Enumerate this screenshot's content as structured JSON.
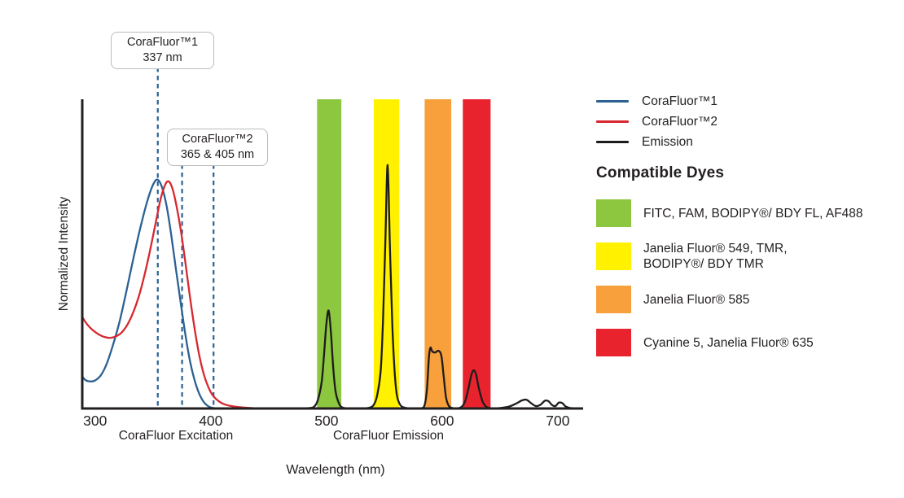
{
  "figure": {
    "y_axis_label": "Normalized Intensity",
    "x_axis_label": "Wavelength (nm)",
    "excitation_label": "CoraFluor Excitation",
    "emission_label": "CoraFluor Emission"
  },
  "annotations": {
    "box1": {
      "title": "CoraFluor™1",
      "value": "337 nm"
    },
    "box2": {
      "title": "CoraFluor™2",
      "value": "365 & 405 nm"
    }
  },
  "legend": {
    "items": [
      {
        "key": "corafluor1",
        "label": "CoraFluor™1",
        "color": "#2B6193"
      },
      {
        "key": "corafluor2",
        "label": "CoraFluor™2",
        "color": "#D7282F"
      },
      {
        "key": "emission",
        "label": "Emission",
        "color": "#1C1C1C"
      }
    ]
  },
  "compatible_dyes": {
    "heading": "Compatible Dyes",
    "items": [
      {
        "color": "#8DC63F",
        "label": "FITC, FAM, BODIPY®/ BDY FL, AF488"
      },
      {
        "color": "#FFF100",
        "label": "Janelia Fluor® 549, TMR,\nBODIPY®/ BDY TMR"
      },
      {
        "color": "#F7A03C",
        "label": "Janelia Fluor® 585"
      },
      {
        "color": "#E8232E",
        "label": "Cyanine 5, Janelia Fluor® 635"
      }
    ]
  },
  "chart_data": {
    "type": "line",
    "title": "CoraFluor excitation and emission spectra with compatible dye filter bands",
    "xlabel": "Wavelength (nm)",
    "ylabel": "Normalized Intensity",
    "xlim": [
      291,
      724
    ],
    "ylim": [
      0,
      1.27
    ],
    "x_ticks": [
      300,
      400,
      500,
      600,
      700
    ],
    "grid": false,
    "legend_position": "right",
    "marker_color": "#2B6193",
    "axis_color": "#231F20",
    "markers": [
      {
        "x": 356.3,
        "from_box": 1,
        "labeled_peak": "337 nm"
      },
      {
        "x": 377.3,
        "from_box": 2,
        "labeled_peak": "365 nm"
      },
      {
        "x": 404.5,
        "from_box": 2,
        "labeled_peak": "405 nm"
      }
    ],
    "bands": [
      {
        "name": "green",
        "x1": 494,
        "x2": 515,
        "color": "#8DC63F"
      },
      {
        "name": "yellow",
        "x1": 543,
        "x2": 565,
        "color": "#FFF100"
      },
      {
        "name": "orange",
        "x1": 587,
        "x2": 610,
        "color": "#F7A03C"
      },
      {
        "name": "red",
        "x1": 620,
        "x2": 644,
        "color": "#E8232E"
      }
    ],
    "series": [
      {
        "key": "corafluor1-excitation",
        "name": "CoraFluor™1",
        "color": "#2B6193",
        "points": [
          [
            291,
            0.131
          ],
          [
            294,
            0.116
          ],
          [
            298,
            0.111
          ],
          [
            302,
            0.115
          ],
          [
            307,
            0.136
          ],
          [
            312,
            0.182
          ],
          [
            317,
            0.252
          ],
          [
            323,
            0.352
          ],
          [
            329,
            0.478
          ],
          [
            335,
            0.612
          ],
          [
            341,
            0.738
          ],
          [
            347,
            0.848
          ],
          [
            352,
            0.917
          ],
          [
            356,
            0.94
          ],
          [
            360,
            0.908
          ],
          [
            364,
            0.83
          ],
          [
            368,
            0.71
          ],
          [
            372,
            0.572
          ],
          [
            376,
            0.438
          ],
          [
            380,
            0.308
          ],
          [
            384,
            0.198
          ],
          [
            388,
            0.118
          ],
          [
            392,
            0.062
          ],
          [
            396,
            0.027
          ],
          [
            400,
            0.009
          ],
          [
            404,
            0.002
          ],
          [
            410,
            0
          ]
        ]
      },
      {
        "key": "corafluor2-excitation",
        "name": "CoraFluor™2",
        "color": "#D7282F",
        "points": [
          [
            291,
            0.376
          ],
          [
            295,
            0.347
          ],
          [
            300,
            0.322
          ],
          [
            305,
            0.305
          ],
          [
            310,
            0.294
          ],
          [
            315,
            0.29
          ],
          [
            320,
            0.296
          ],
          [
            325,
            0.312
          ],
          [
            330,
            0.344
          ],
          [
            335,
            0.394
          ],
          [
            340,
            0.462
          ],
          [
            345,
            0.552
          ],
          [
            350,
            0.658
          ],
          [
            355,
            0.775
          ],
          [
            359,
            0.865
          ],
          [
            363,
            0.922
          ],
          [
            366,
            0.932
          ],
          [
            369,
            0.903
          ],
          [
            372,
            0.843
          ],
          [
            376,
            0.738
          ],
          [
            380,
            0.605
          ],
          [
            384,
            0.462
          ],
          [
            388,
            0.332
          ],
          [
            392,
            0.222
          ],
          [
            396,
            0.142
          ],
          [
            400,
            0.088
          ],
          [
            404,
            0.053
          ],
          [
            409,
            0.03
          ],
          [
            414,
            0.017
          ],
          [
            421,
            0.009
          ],
          [
            430,
            0.004
          ],
          [
            440,
            0.001
          ],
          [
            452,
            0
          ]
        ]
      },
      {
        "key": "emission",
        "name": "Emission",
        "color": "#1C1C1C",
        "points": [
          [
            478,
            0
          ],
          [
            488,
            0.002
          ],
          [
            492,
            0.01
          ],
          [
            495,
            0.04
          ],
          [
            498,
            0.11
          ],
          [
            500,
            0.22
          ],
          [
            502,
            0.345
          ],
          [
            504,
            0.402
          ],
          [
            506,
            0.31
          ],
          [
            508,
            0.165
          ],
          [
            510,
            0.07
          ],
          [
            513,
            0.02
          ],
          [
            516,
            0.004
          ],
          [
            522,
            0
          ],
          [
            532,
            0
          ],
          [
            539,
            0.003
          ],
          [
            543,
            0.015
          ],
          [
            546,
            0.055
          ],
          [
            549,
            0.155
          ],
          [
            551,
            0.36
          ],
          [
            553,
            0.68
          ],
          [
            555,
            1.0
          ],
          [
            557,
            0.66
          ],
          [
            559,
            0.35
          ],
          [
            561,
            0.155
          ],
          [
            563,
            0.055
          ],
          [
            566,
            0.014
          ],
          [
            570,
            0.003
          ],
          [
            576,
            0
          ],
          [
            584,
            0.001
          ],
          [
            587,
            0.015
          ],
          [
            589,
            0.08
          ],
          [
            590.7,
            0.21
          ],
          [
            592,
            0.25
          ],
          [
            593.5,
            0.235
          ],
          [
            596,
            0.23
          ],
          [
            599,
            0.237
          ],
          [
            601.5,
            0.215
          ],
          [
            603.5,
            0.13
          ],
          [
            605.5,
            0.045
          ],
          [
            608,
            0.01
          ],
          [
            611,
            0.002
          ],
          [
            615,
            0
          ],
          [
            619,
            0.007
          ],
          [
            622,
            0.03
          ],
          [
            625,
            0.085
          ],
          [
            627.5,
            0.14
          ],
          [
            629.5,
            0.157
          ],
          [
            631.5,
            0.138
          ],
          [
            634,
            0.08
          ],
          [
            637,
            0.03
          ],
          [
            640,
            0.008
          ],
          [
            644,
            0.001
          ],
          [
            648,
            0.001
          ],
          [
            654,
            0.003
          ],
          [
            660,
            0.008
          ],
          [
            666,
            0.02
          ],
          [
            671,
            0.033
          ],
          [
            675,
            0.036
          ],
          [
            679,
            0.022
          ],
          [
            683,
            0.01
          ],
          [
            687,
            0.015
          ],
          [
            691,
            0.032
          ],
          [
            694,
            0.03
          ],
          [
            697,
            0.015
          ],
          [
            700,
            0.01
          ],
          [
            703,
            0.024
          ],
          [
            706,
            0.022
          ],
          [
            709,
            0.008
          ],
          [
            713,
            0.002
          ],
          [
            717,
            0
          ]
        ]
      }
    ]
  }
}
